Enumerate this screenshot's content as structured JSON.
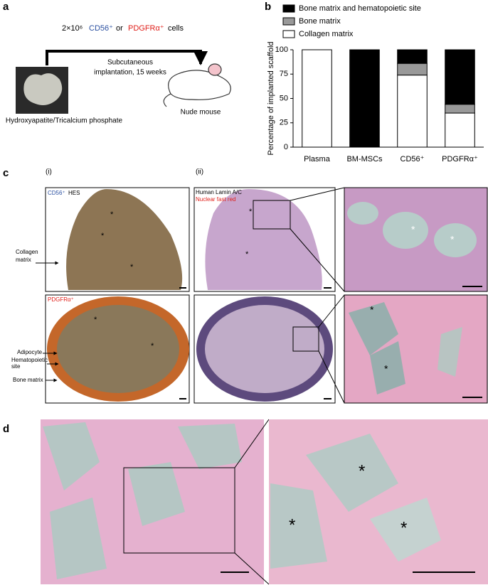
{
  "panel_labels": {
    "a": "a",
    "b": "b",
    "c": "c",
    "d": "d"
  },
  "panel_a": {
    "dose": "2×10⁶",
    "cell1": "CD56⁺",
    "conj": "or",
    "cell2": "PDGFRα⁺",
    "cells": "cells",
    "procedure": [
      "Subcutaneous",
      "implantation, 15 weeks"
    ],
    "scaffold": "Hydroxyapatite/Tricalcium phosphate",
    "host": "Nude mouse"
  },
  "chart_data": {
    "type": "bar",
    "stacked": true,
    "ylabel": "Percentage of implanted scaffold",
    "categories": [
      "Plasma",
      "BM-MSCs",
      "CD56⁺",
      "PDGFRα⁺"
    ],
    "series": [
      {
        "name": "Collagen matrix",
        "color": "#ffffff",
        "values": [
          100,
          0,
          74,
          35
        ]
      },
      {
        "name": "Bone matrix",
        "color": "#999999",
        "values": [
          0,
          0,
          12,
          9
        ]
      },
      {
        "name": "Bone matrix and hematopoietic site",
        "color": "#000000",
        "values": [
          0,
          100,
          14,
          56
        ]
      }
    ],
    "ylim": [
      0,
      100
    ],
    "yticks": [
      0,
      25,
      50,
      75,
      100
    ],
    "grid": false
  },
  "panel_c": {
    "col_labels": [
      "(i)",
      "(ii)"
    ],
    "stain_i": "HES",
    "stain_ii": [
      "Human Lamin A/C",
      "Nuclear fast red"
    ],
    "row_labels": [
      "CD56⁺",
      "PDGFRα⁺"
    ],
    "annotations": {
      "collagen": [
        "Collagen",
        "matrix"
      ],
      "adipocyte": "Adipocyte",
      "hematopoietic": [
        "Hematopoietic",
        "site"
      ],
      "bone": "Bone matrix"
    },
    "marker": "*"
  }
}
